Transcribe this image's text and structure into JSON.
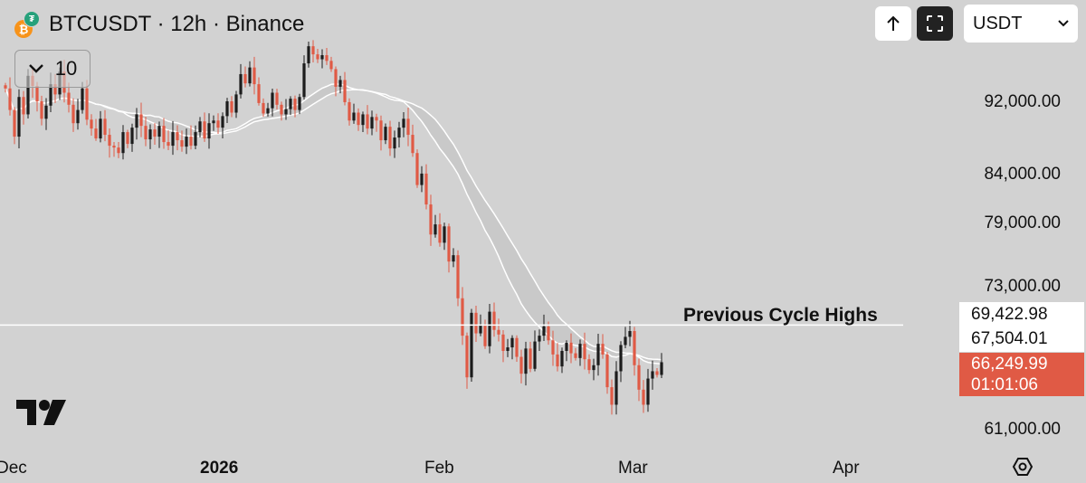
{
  "header": {
    "symbol": "BTCUSDT",
    "interval": "12h",
    "exchange": "Binance",
    "title_text": "BTCUSDT · 12h · Binance",
    "currency": "USDT",
    "indicator_count": "10"
  },
  "icons": {
    "coin": "btc-usdt-icon",
    "chevron": "chevron-down-icon",
    "scroll_up": "arrow-up-icon",
    "fullscreen": "fullscreen-icon",
    "logo": "tradingview-logo-icon",
    "settings": "settings-icon"
  },
  "colors": {
    "background": "#d2d2d2",
    "up_candle": "#1c1c1c",
    "down_candle": "#e05a45",
    "band_fill": "#c9c9c9",
    "band_line": "#ffffff",
    "level_line": "#ffffff",
    "current_price_tag": "#e05a45"
  },
  "price_axis": {
    "labels": [
      "92,000.00",
      "84,000.00",
      "79,000.00",
      "73,000.00",
      "61,000.00"
    ],
    "scale": "log"
  },
  "price_tags": {
    "level": "69,422.98",
    "band": "67,504.01",
    "current": "66,249.99",
    "countdown": "01:01:06"
  },
  "time_axis": {
    "labels": [
      "Dec",
      "2026",
      "Feb",
      "Mar",
      "Apr"
    ]
  },
  "annotation": {
    "text": "Previous Cycle Highs"
  },
  "chart_data": {
    "type": "candlestick",
    "x_axis": [
      "Dec",
      "2026",
      "Feb",
      "Mar",
      "Apr"
    ],
    "y_axis_scale": "log",
    "ylim": [
      59000,
      100000
    ],
    "horizontal_level": {
      "label": "Previous Cycle Highs",
      "value": 69422.98
    },
    "band_last_value": 67504.01,
    "last_price": 66249.99,
    "countdown": "01:01:06",
    "closes": [
      93500,
      91000,
      88000,
      92500,
      90500,
      95000,
      93800,
      92000,
      90000,
      91500,
      94000,
      92800,
      95500,
      93000,
      91600,
      89500,
      91000,
      93500,
      89900,
      88900,
      87800,
      90000,
      88200,
      87000,
      86800,
      86200,
      88500,
      87200,
      89000,
      90500,
      89200,
      87700,
      88800,
      88000,
      89200,
      87400,
      87000,
      88500,
      87600,
      86900,
      88000,
      87000,
      88500,
      89700,
      87800,
      89500,
      89800,
      89000,
      90300,
      92000,
      90700,
      92800,
      95200,
      94100,
      96000,
      94000,
      91800,
      90600,
      91200,
      93000,
      91600,
      90500,
      91100,
      92300,
      91000,
      92500,
      96500,
      98600,
      97600,
      97000,
      97500,
      96800,
      95800,
      93700,
      94500,
      91900,
      89800,
      90700,
      89300,
      90500,
      88900,
      90200,
      89800,
      87600,
      89100,
      86700,
      87900,
      89000,
      90000,
      88200,
      86200,
      82800,
      84000,
      80800,
      77800,
      78800,
      77000,
      78600,
      75200,
      75800,
      71800,
      68500,
      65000,
      70500,
      68700,
      69400,
      67600,
      70600,
      69000,
      68600,
      67200,
      67500,
      68300,
      66700,
      65300,
      67400,
      65700,
      68000,
      68500,
      69300,
      68100,
      66900,
      65900,
      67200,
      67900,
      67000,
      66600,
      67800,
      66500,
      65600,
      66000,
      67800,
      66900,
      64200,
      62800,
      65500,
      67700,
      68400,
      68900,
      66000,
      64000,
      62800,
      64900,
      65500,
      65200,
      66250
    ]
  }
}
